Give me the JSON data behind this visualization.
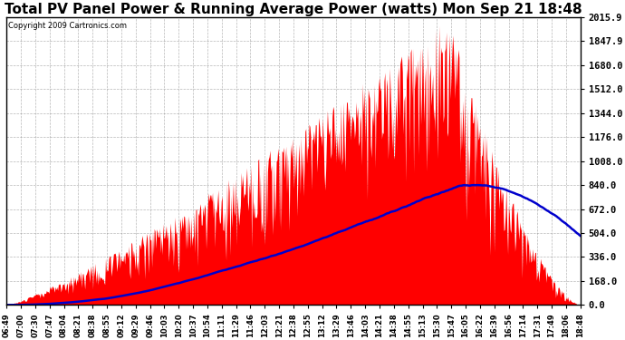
{
  "title": "Total PV Panel Power & Running Average Power (watts) Mon Sep 21 18:48",
  "copyright": "Copyright 2009 Cartronics.com",
  "y_ticks": [
    0.0,
    168.0,
    336.0,
    504.0,
    672.0,
    840.0,
    1008.0,
    1176.0,
    1344.0,
    1512.0,
    1680.0,
    1847.9,
    2015.9
  ],
  "ymax": 2015.9,
  "ymin": 0.0,
  "bar_color": "#FF0000",
  "avg_color": "#0000CC",
  "background_color": "#FFFFFF",
  "grid_color": "#888888",
  "title_fontsize": 11,
  "x_labels": [
    "06:49",
    "07:00",
    "07:30",
    "07:47",
    "08:04",
    "08:21",
    "08:38",
    "08:55",
    "09:12",
    "09:29",
    "09:46",
    "10:03",
    "10:20",
    "10:37",
    "10:54",
    "11:11",
    "11:29",
    "11:46",
    "12:03",
    "12:21",
    "12:38",
    "12:55",
    "13:12",
    "13:29",
    "13:46",
    "14:03",
    "14:21",
    "14:38",
    "14:55",
    "15:13",
    "15:30",
    "15:47",
    "16:05",
    "16:22",
    "16:39",
    "16:56",
    "17:14",
    "17:31",
    "17:49",
    "18:06",
    "18:48"
  ]
}
